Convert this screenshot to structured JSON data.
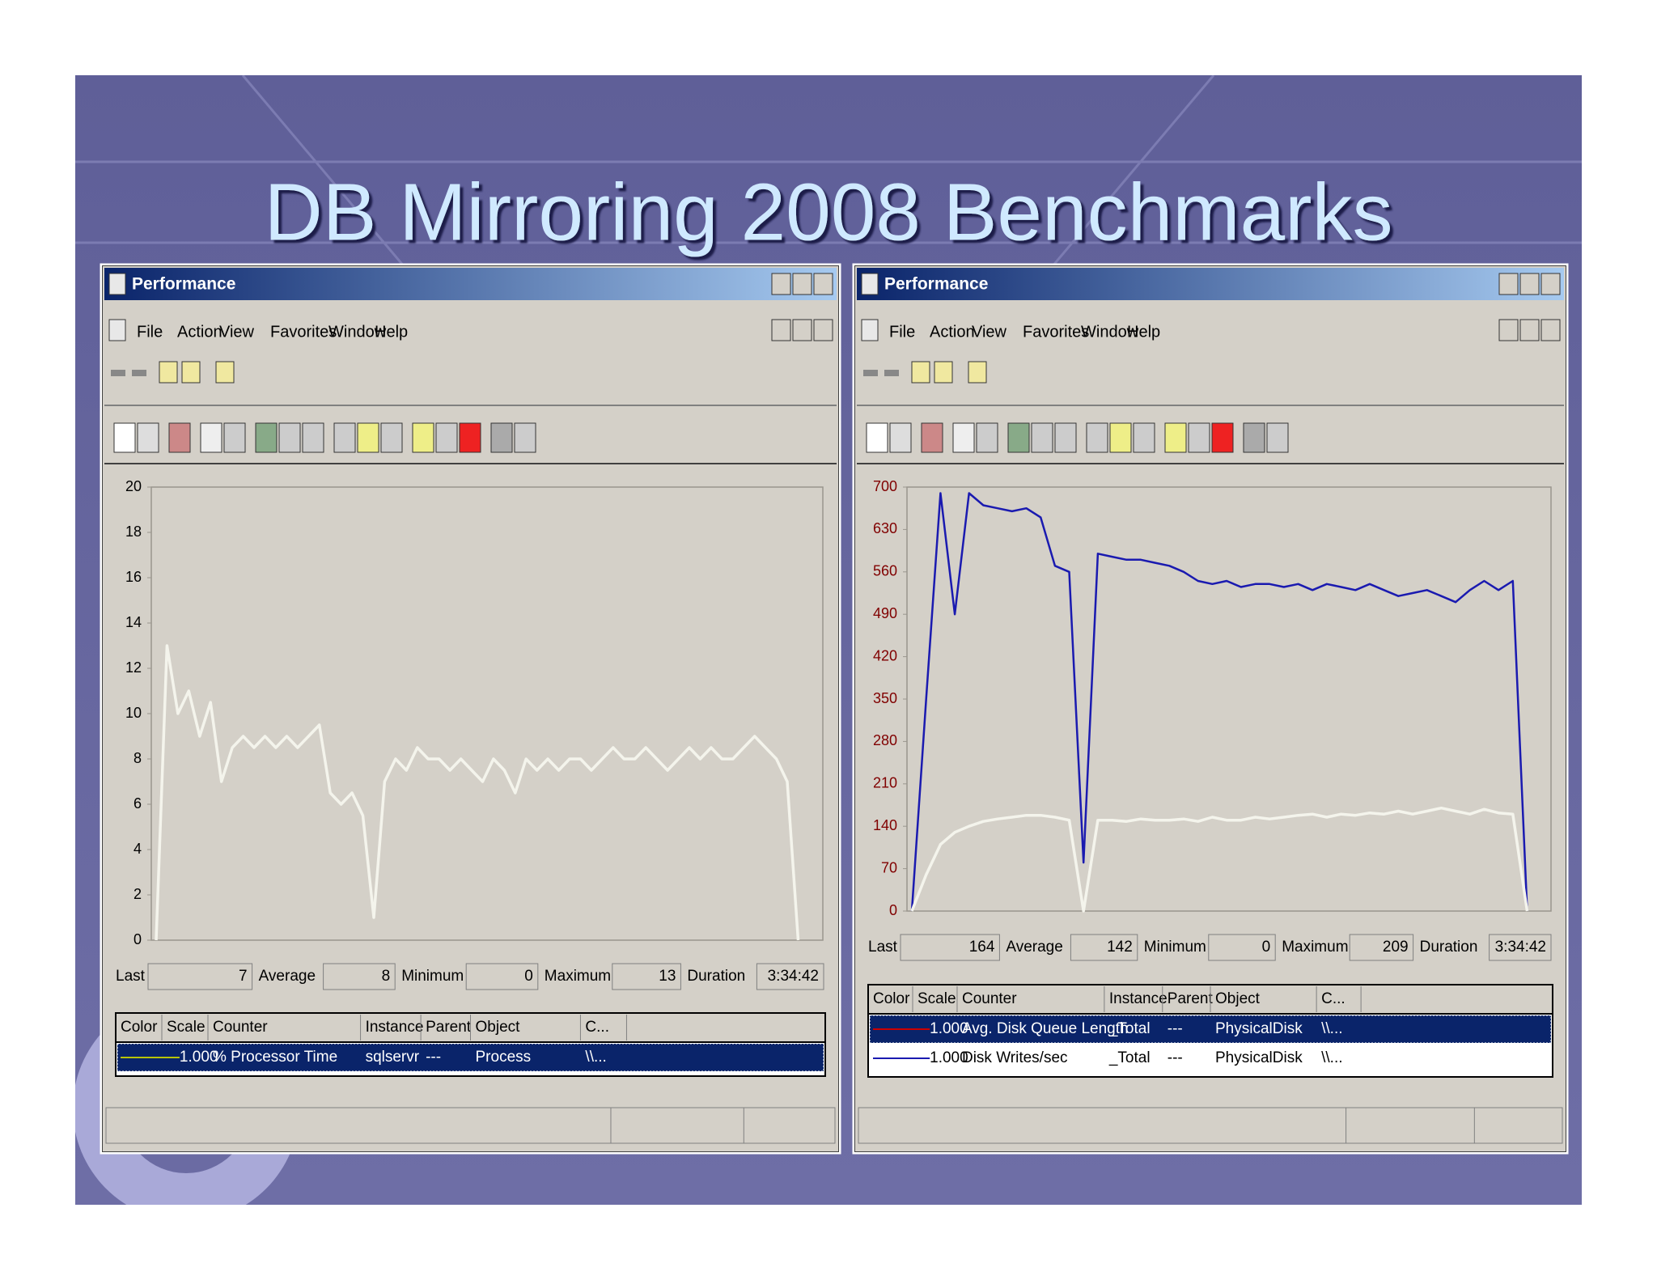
{
  "slide": {
    "title": "DB Mirroring 2008  Benchmarks"
  },
  "windows": [
    {
      "title": "Performance",
      "menu": [
        "File",
        "Action",
        "View",
        "Favorites",
        "Window",
        "Help"
      ],
      "chart": {
        "type": "line",
        "ylim": [
          0,
          20
        ],
        "yticks": [
          0,
          2,
          4,
          6,
          8,
          10,
          12,
          14,
          16,
          18,
          20
        ],
        "tick_color": "#000000",
        "highlight": 0,
        "series": [
          {
            "name": "% Processor Time",
            "color": "#b8c400",
            "values": [
              0,
              13,
              10,
              11,
              9,
              10.5,
              7,
              8.5,
              9,
              8.5,
              9,
              8.5,
              9,
              8.5,
              9,
              9.5,
              6.5,
              6,
              6.5,
              5.5,
              1,
              7,
              8,
              7.5,
              8.5,
              8,
              8,
              7.5,
              8,
              7.5,
              7,
              8,
              7.5,
              6.5,
              8,
              7.5,
              8,
              7.5,
              8,
              8,
              7.5,
              8,
              8.5,
              8,
              8,
              8.5,
              8,
              7.5,
              8,
              8.5,
              8,
              8.5,
              8,
              8,
              8.5,
              9,
              8.5,
              8,
              7,
              0
            ]
          }
        ]
      },
      "stats": [
        {
          "label": "Last",
          "value": 7
        },
        {
          "label": "Average",
          "value": 8
        },
        {
          "label": "Minimum",
          "value": 0
        },
        {
          "label": "Maximum",
          "value": 13
        },
        {
          "label": "Duration",
          "value": "3:34:42"
        }
      ],
      "columns": [
        "Color",
        "Scale",
        "Counter",
        "Instance",
        "Parent",
        "Object",
        "C..."
      ],
      "rows": [
        {
          "scale": "1.000",
          "instance": "sqlservr",
          "parent": "---",
          "object": "Process",
          "computer": "\\\\..."
        }
      ]
    },
    {
      "title": "Performance",
      "menu": [
        "File",
        "Action",
        "View",
        "Favorites",
        "Window",
        "Help"
      ],
      "chart": {
        "type": "line",
        "ylim": [
          0,
          700
        ],
        "yticks": [
          0,
          70,
          140,
          210,
          280,
          350,
          420,
          490,
          560,
          630,
          700
        ],
        "tick_color": "#800000",
        "highlight": 0,
        "series": [
          {
            "name": "Avg. Disk Queue Length",
            "color": "#cc0000",
            "values": [
              0,
              60,
              110,
              130,
              140,
              148,
              152,
              155,
              158,
              158,
              155,
              150,
              0,
              150,
              150,
              148,
              152,
              150,
              150,
              152,
              148,
              155,
              150,
              150,
              155,
              152,
              155,
              158,
              160,
              155,
              160,
              158,
              162,
              160,
              165,
              160,
              165,
              170,
              165,
              160,
              168,
              162,
              160,
              0
            ]
          },
          {
            "name": "Disk Writes/sec",
            "color": "#1a1ab0",
            "values": [
              0,
              350,
              690,
              490,
              690,
              670,
              665,
              660,
              665,
              650,
              570,
              560,
              80,
              590,
              585,
              580,
              580,
              575,
              570,
              560,
              545,
              540,
              545,
              535,
              540,
              540,
              535,
              540,
              530,
              540,
              535,
              530,
              540,
              530,
              520,
              525,
              530,
              520,
              510,
              530,
              545,
              530,
              545,
              0
            ]
          }
        ]
      },
      "stats": [
        {
          "label": "Last",
          "value": 164
        },
        {
          "label": "Average",
          "value": 142
        },
        {
          "label": "Minimum",
          "value": 0
        },
        {
          "label": "Maximum",
          "value": 209
        },
        {
          "label": "Duration",
          "value": "3:34:42"
        }
      ],
      "columns": [
        "Color",
        "Scale",
        "Counter",
        "Instance",
        "Parent",
        "Object",
        "C..."
      ],
      "rows": [
        {
          "scale": "1.000",
          "instance": "_Total",
          "parent": "---",
          "object": "PhysicalDisk",
          "computer": "\\\\..."
        },
        {
          "scale": "1.000",
          "instance": "_Total",
          "parent": "---",
          "object": "PhysicalDisk",
          "computer": "\\\\..."
        }
      ]
    }
  ]
}
